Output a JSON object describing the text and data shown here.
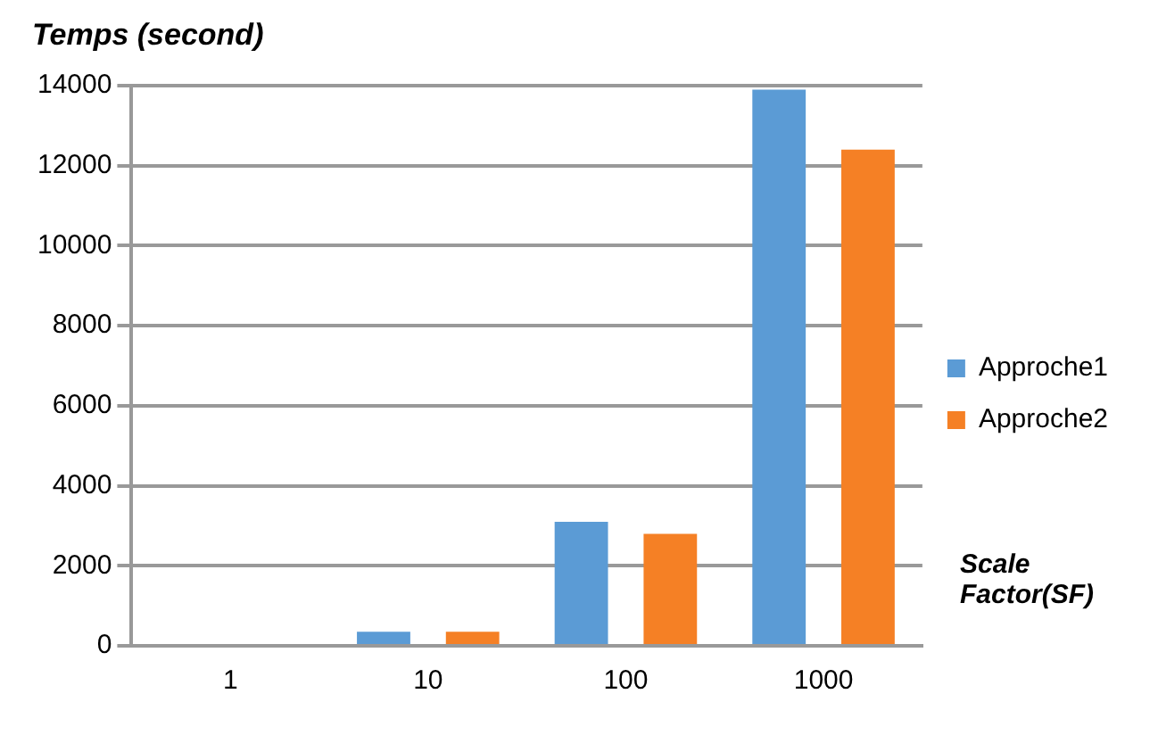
{
  "chart_data": {
    "type": "bar",
    "ylabel": "Temps (second)",
    "xlabel": "Scale Factor(SF)",
    "categories": [
      "1",
      "10",
      "100",
      "1000"
    ],
    "series": [
      {
        "name": "Approche1",
        "color": "#5b9bd5",
        "values": [
          null,
          350,
          3100,
          13900
        ]
      },
      {
        "name": "Approche2",
        "color": "#f58025",
        "values": [
          null,
          350,
          2800,
          12400
        ]
      }
    ],
    "ylim": [
      0,
      14000
    ],
    "yticks": [
      0,
      2000,
      4000,
      6000,
      8000,
      10000,
      12000,
      14000
    ],
    "grid": "y",
    "legend": "right"
  }
}
